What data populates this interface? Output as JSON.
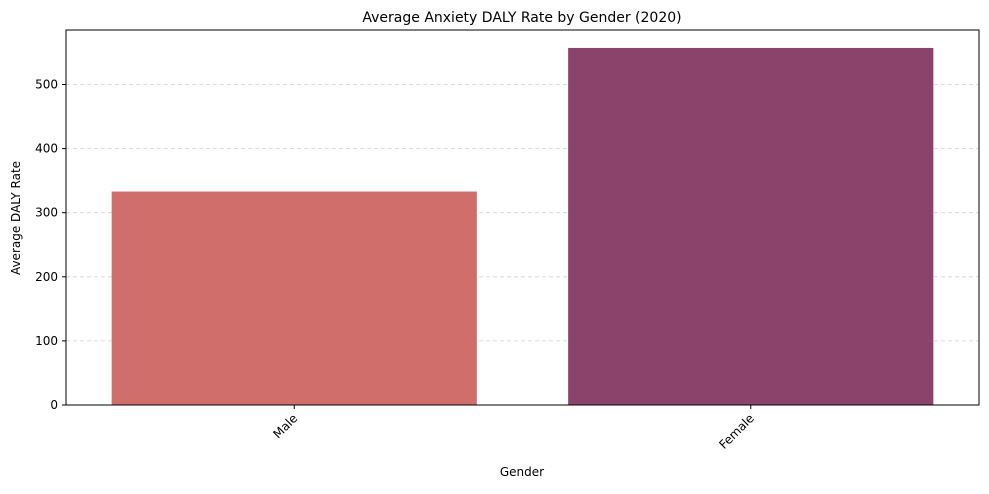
{
  "chart_data": {
    "type": "bar",
    "title": "Average Anxiety DALY Rate by Gender (2020)",
    "xlabel": "Gender",
    "ylabel": "Average DALY Rate",
    "categories": [
      "Male",
      "Female"
    ],
    "values": [
      333,
      557
    ],
    "colors": [
      "#cf6e6a",
      "#8b436c"
    ],
    "ylim": [
      0,
      585
    ],
    "yticks": [
      0,
      100,
      200,
      300,
      400,
      500
    ],
    "grid": "y-dashed",
    "x_tick_rotation": 45
  }
}
